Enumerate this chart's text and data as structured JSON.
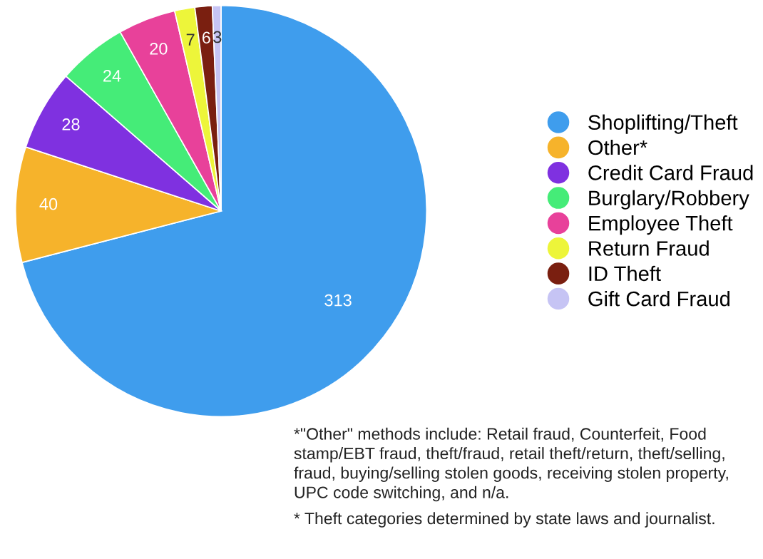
{
  "chart_data": {
    "type": "pie",
    "categories": [
      "Shoplifting/Theft",
      "Other*",
      "Credit Card Fraud",
      "Burglary/Robbery",
      "Employee Theft",
      "Return Fraud",
      "ID Theft",
      "Gift Card Fraud"
    ],
    "values": [
      313,
      40,
      28,
      24,
      20,
      7,
      6,
      3
    ],
    "colors": [
      "#3f9ded",
      "#f6b32b",
      "#7f31e0",
      "#45ec78",
      "#e8419a",
      "#edf53a",
      "#7a1f10",
      "#c6c4f4"
    ],
    "data_labels": true,
    "legend": "right",
    "annotations": [
      "*\"Other\" methods include: Retail fraud, Counterfeit, Food stamp/EBT fraud, theft/fraud, retail theft/return, theft/selling, fraud, buying/selling stolen goods, receiving stolen property, UPC code switching, and n/a.",
      "* Theft categories determined by state laws and journalist."
    ]
  }
}
